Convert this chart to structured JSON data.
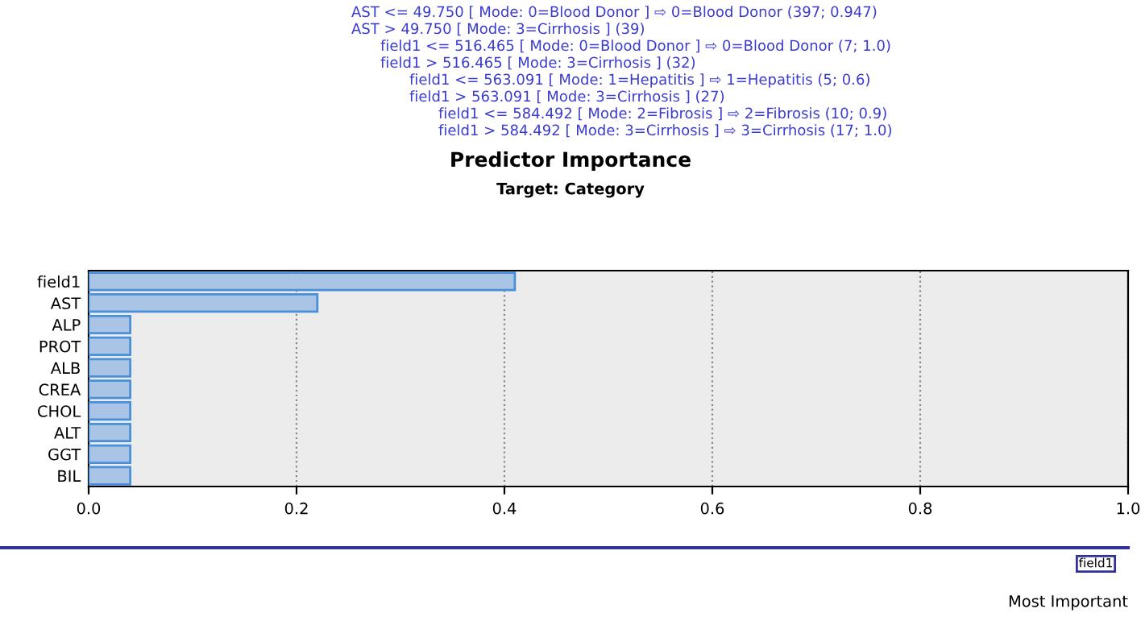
{
  "chart_data": {
    "type": "bar",
    "orientation": "horizontal",
    "title": "Predictor Importance",
    "subtitle": "Target: Category",
    "categories": [
      "field1",
      "AST",
      "ALP",
      "PROT",
      "ALB",
      "CREA",
      "CHOL",
      "ALT",
      "GGT",
      "BIL"
    ],
    "values": [
      0.41,
      0.22,
      0.04,
      0.04,
      0.04,
      0.04,
      0.04,
      0.04,
      0.04,
      0.04
    ],
    "color": "#a9c4e4",
    "xlim": [
      0,
      1
    ],
    "xticks": [
      "0.0",
      0.2,
      0.4,
      0.6,
      0.8,
      "1.0"
    ],
    "grid": "x",
    "annotations": [
      "AST <= 49.750 [ Mode: 0=Blood Donor ] ⇨ 0=Blood Donor (397; 0.947)",
      "AST > 49.750 [ Mode: 3=Cirrhosis ] (39)",
      "field1 <= 516.465 [ Mode: 0=Blood Donor ] ⇨ 0=Blood Donor (7; 1.0)",
      "field1 > 516.465 [ Mode: 3=Cirrhosis ] (32)",
      "field1 <= 563.091 [ Mode: 1=Hepatitis ] ⇨ 1=Hepatitis (5; 0.6)",
      "field1 > 563.091 [ Mode: 3=Cirrhosis ] (27)",
      "field1 <= 584.492 [ Mode: 2=Fibrosis ] ⇨ 2=Fibrosis (10; 0.9)",
      "field1 > 584.492 [ Mode: 3=Cirrhosis ] ⇨ 3=Cirrhosis (17; 1.0)",
      "field1",
      "Most Important"
    ]
  }
}
